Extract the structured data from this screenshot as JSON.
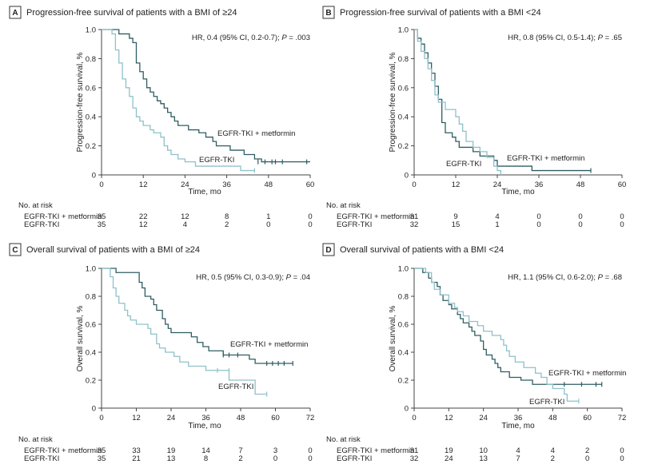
{
  "colors": {
    "dark": "#2f5d62",
    "light": "#8fc1c8",
    "axis": "#444444",
    "text": "#222222"
  },
  "chart_data": [
    {
      "type": "line",
      "letter": "A",
      "title": "Progression-free survival of patients with a BMI of ≥24",
      "xlabel": "Time, mo",
      "ylabel": "Progression-free survival, %",
      "xlim": [
        0,
        60
      ],
      "ylim": [
        0,
        1.0
      ],
      "xticks": [
        "0",
        "12",
        "24",
        "36",
        "48",
        "60"
      ],
      "yticks": [
        "0",
        "0.2",
        "0.4",
        "0.6",
        "0.8",
        "1.0"
      ],
      "hr": {
        "prefix": "HR, 0.4 (95% CI, 0.2-0.7); ",
        "p_label": "P",
        "p_value": " = .003"
      },
      "series": [
        {
          "name": "EGFR-TKI + metformin",
          "color_key": "dark",
          "points": [
            [
              0,
              1.0
            ],
            [
              4,
              1.0
            ],
            [
              5,
              0.97
            ],
            [
              8,
              0.94
            ],
            [
              9,
              0.91
            ],
            [
              10,
              0.77
            ],
            [
              11,
              0.71
            ],
            [
              12,
              0.66
            ],
            [
              13,
              0.6
            ],
            [
              14,
              0.57
            ],
            [
              15,
              0.54
            ],
            [
              16,
              0.51
            ],
            [
              17,
              0.49
            ],
            [
              18,
              0.46
            ],
            [
              19,
              0.43
            ],
            [
              20,
              0.4
            ],
            [
              21,
              0.37
            ],
            [
              22,
              0.34
            ],
            [
              25,
              0.31
            ],
            [
              28,
              0.29
            ],
            [
              30,
              0.26
            ],
            [
              32,
              0.23
            ],
            [
              33,
              0.2
            ],
            [
              37,
              0.17
            ],
            [
              41,
              0.14
            ],
            [
              44,
              0.11
            ],
            [
              46,
              0.09
            ],
            [
              60,
              0.09
            ]
          ],
          "censored": [
            [
              45,
              0.09
            ],
            [
              47,
              0.09
            ],
            [
              49,
              0.09
            ],
            [
              50,
              0.09
            ],
            [
              52,
              0.09
            ],
            [
              59,
              0.09
            ]
          ]
        },
        {
          "name": "EGFR-TKI",
          "color_key": "light",
          "points": [
            [
              0,
              1.0
            ],
            [
              3,
              0.97
            ],
            [
              4,
              0.86
            ],
            [
              5,
              0.77
            ],
            [
              6,
              0.66
            ],
            [
              7,
              0.6
            ],
            [
              8,
              0.54
            ],
            [
              9,
              0.46
            ],
            [
              10,
              0.4
            ],
            [
              11,
              0.37
            ],
            [
              12,
              0.34
            ],
            [
              14,
              0.31
            ],
            [
              15,
              0.29
            ],
            [
              17,
              0.26
            ],
            [
              18,
              0.2
            ],
            [
              19,
              0.17
            ],
            [
              20,
              0.14
            ],
            [
              22,
              0.11
            ],
            [
              24,
              0.09
            ],
            [
              27,
              0.06
            ],
            [
              40,
              0.03
            ],
            [
              44,
              0.03
            ]
          ],
          "censored": [
            [
              44,
              0.03
            ]
          ]
        }
      ],
      "labels": [
        "EGFR-TKI + metformin",
        "EGFR-TKI"
      ],
      "risk_rows": [
        {
          "label": "EGFR-TKI + metformin",
          "values": [
            "35",
            "22",
            "12",
            "8",
            "1",
            "0"
          ]
        },
        {
          "label": "EGFR-TKI",
          "values": [
            "35",
            "12",
            "4",
            "2",
            "0",
            "0"
          ]
        }
      ]
    },
    {
      "type": "line",
      "letter": "B",
      "title": "Progression-free survival of patients with a BMI <24",
      "xlabel": "Time, mo",
      "ylabel": "Progression-free survival, %",
      "xlim": [
        0,
        60
      ],
      "ylim": [
        0,
        1.0
      ],
      "xticks": [
        "0",
        "12",
        "24",
        "36",
        "48",
        "60"
      ],
      "yticks": [
        "0",
        "0.2",
        "0.4",
        "0.6",
        "0.8",
        "1.0"
      ],
      "hr": {
        "prefix": "HR, 0.8 (95% CI, 0.5-1.4); ",
        "p_label": "P",
        "p_value": " = .65"
      },
      "series": [
        {
          "name": "EGFR-TKI + metformin",
          "color_key": "dark",
          "points": [
            [
              0,
              1.0
            ],
            [
              1,
              0.94
            ],
            [
              2,
              0.9
            ],
            [
              3,
              0.84
            ],
            [
              4,
              0.77
            ],
            [
              5,
              0.7
            ],
            [
              6,
              0.61
            ],
            [
              7,
              0.52
            ],
            [
              8,
              0.36
            ],
            [
              9,
              0.29
            ],
            [
              11,
              0.26
            ],
            [
              12,
              0.23
            ],
            [
              13,
              0.19
            ],
            [
              17,
              0.16
            ],
            [
              19,
              0.13
            ],
            [
              23,
              0.1
            ],
            [
              24,
              0.06
            ],
            [
              34,
              0.03
            ],
            [
              51,
              0.03
            ]
          ],
          "censored": [
            [
              51,
              0.03
            ]
          ]
        },
        {
          "name": "EGFR-TKI",
          "color_key": "light",
          "points": [
            [
              0,
              1.0
            ],
            [
              1,
              0.92
            ],
            [
              2,
              0.85
            ],
            [
              3,
              0.8
            ],
            [
              4,
              0.73
            ],
            [
              5,
              0.65
            ],
            [
              6,
              0.55
            ],
            [
              7,
              0.5
            ],
            [
              9,
              0.45
            ],
            [
              12,
              0.4
            ],
            [
              13,
              0.35
            ],
            [
              14,
              0.3
            ],
            [
              15,
              0.23
            ],
            [
              17,
              0.19
            ],
            [
              19,
              0.16
            ],
            [
              21,
              0.12
            ],
            [
              23,
              0.06
            ],
            [
              24,
              0.03
            ],
            [
              25,
              0.0
            ]
          ],
          "censored": []
        }
      ],
      "labels": [
        "EGFR-TKI + metformin",
        "EGFR-TKI"
      ],
      "risk_rows": [
        {
          "label": "EGFR-TKI + metformin",
          "values": [
            "31",
            "9",
            "4",
            "0",
            "0",
            "0"
          ]
        },
        {
          "label": "EGFR-TKI",
          "values": [
            "32",
            "15",
            "1",
            "0",
            "0",
            "0"
          ]
        }
      ]
    },
    {
      "type": "line",
      "letter": "C",
      "title": "Overall survival of patients with a BMI of ≥24",
      "xlabel": "Time, mo",
      "ylabel": "Overall survival, %",
      "xlim": [
        0,
        72
      ],
      "ylim": [
        0,
        1.0
      ],
      "xticks": [
        "0",
        "12",
        "24",
        "36",
        "48",
        "60",
        "72"
      ],
      "yticks": [
        "0",
        "0.2",
        "0.4",
        "0.6",
        "0.8",
        "1.0"
      ],
      "hr": {
        "prefix": "HR, 0.5 (95% CI, 0.3-0.9); ",
        "p_label": "P",
        "p_value": " = .04"
      },
      "series": [
        {
          "name": "EGFR-TKI + metformin",
          "color_key": "dark",
          "points": [
            [
              0,
              1.0
            ],
            [
              5,
              0.97
            ],
            [
              12,
              0.97
            ],
            [
              13,
              0.9
            ],
            [
              14,
              0.86
            ],
            [
              15,
              0.8
            ],
            [
              17,
              0.78
            ],
            [
              18,
              0.74
            ],
            [
              19,
              0.7
            ],
            [
              21,
              0.64
            ],
            [
              22,
              0.6
            ],
            [
              23,
              0.57
            ],
            [
              24,
              0.54
            ],
            [
              31,
              0.51
            ],
            [
              33,
              0.47
            ],
            [
              35,
              0.44
            ],
            [
              37,
              0.41
            ],
            [
              42,
              0.38
            ],
            [
              51,
              0.35
            ],
            [
              53,
              0.32
            ],
            [
              66,
              0.32
            ]
          ],
          "censored": [
            [
              42,
              0.38
            ],
            [
              44,
              0.38
            ],
            [
              47,
              0.38
            ],
            [
              57,
              0.32
            ],
            [
              59,
              0.32
            ],
            [
              61,
              0.32
            ],
            [
              63,
              0.32
            ],
            [
              66,
              0.32
            ]
          ]
        },
        {
          "name": "EGFR-TKI",
          "color_key": "light",
          "points": [
            [
              0,
              1.0
            ],
            [
              3,
              0.94
            ],
            [
              4,
              0.86
            ],
            [
              5,
              0.8
            ],
            [
              6,
              0.75
            ],
            [
              8,
              0.7
            ],
            [
              9,
              0.66
            ],
            [
              10,
              0.63
            ],
            [
              12,
              0.6
            ],
            [
              16,
              0.57
            ],
            [
              17,
              0.53
            ],
            [
              19,
              0.46
            ],
            [
              20,
              0.43
            ],
            [
              22,
              0.4
            ],
            [
              25,
              0.37
            ],
            [
              27,
              0.33
            ],
            [
              30,
              0.3
            ],
            [
              36,
              0.27
            ],
            [
              44,
              0.2
            ],
            [
              53,
              0.1
            ],
            [
              57,
              0.1
            ]
          ],
          "censored": [
            [
              40,
              0.27
            ],
            [
              44,
              0.27
            ],
            [
              57,
              0.1
            ]
          ]
        }
      ],
      "labels": [
        "EGFR-TKI + metformin",
        "EGFR-TKI"
      ],
      "risk_rows": [
        {
          "label": "EGFR-TKI + metformin",
          "values": [
            "35",
            "33",
            "19",
            "14",
            "7",
            "3",
            "0"
          ]
        },
        {
          "label": "EGFR-TKI",
          "values": [
            "35",
            "21",
            "13",
            "8",
            "2",
            "0",
            "0"
          ]
        }
      ]
    },
    {
      "type": "line",
      "letter": "D",
      "title": "Overall survival of patients with a BMI <24",
      "xlabel": "Time, mo",
      "ylabel": "Overall survival, %",
      "xlim": [
        0,
        72
      ],
      "ylim": [
        0,
        1.0
      ],
      "xticks": [
        "0",
        "12",
        "24",
        "36",
        "48",
        "60",
        "72"
      ],
      "yticks": [
        "0",
        "0.2",
        "0.4",
        "0.6",
        "0.8",
        "1.0"
      ],
      "hr": {
        "prefix": "HR, 1.1 (95% CI, 0.6-2.0); ",
        "p_label": "P",
        "p_value": " = .68"
      },
      "series": [
        {
          "name": "EGFR-TKI + metformin",
          "color_key": "dark",
          "points": [
            [
              0,
              1.0
            ],
            [
              3,
              0.97
            ],
            [
              5,
              0.93
            ],
            [
              6,
              0.9
            ],
            [
              8,
              0.87
            ],
            [
              9,
              0.81
            ],
            [
              10,
              0.77
            ],
            [
              12,
              0.74
            ],
            [
              13,
              0.71
            ],
            [
              15,
              0.67
            ],
            [
              16,
              0.64
            ],
            [
              17,
              0.61
            ],
            [
              19,
              0.58
            ],
            [
              20,
              0.55
            ],
            [
              21,
              0.52
            ],
            [
              23,
              0.48
            ],
            [
              24,
              0.42
            ],
            [
              25,
              0.38
            ],
            [
              27,
              0.35
            ],
            [
              28,
              0.32
            ],
            [
              29,
              0.29
            ],
            [
              30,
              0.26
            ],
            [
              33,
              0.22
            ],
            [
              37,
              0.2
            ],
            [
              41,
              0.17
            ],
            [
              65,
              0.17
            ]
          ],
          "censored": [
            [
              52,
              0.17
            ],
            [
              58,
              0.17
            ],
            [
              63,
              0.17
            ],
            [
              65,
              0.17
            ]
          ]
        },
        {
          "name": "EGFR-TKI",
          "color_key": "light",
          "points": [
            [
              0,
              1.0
            ],
            [
              4,
              0.97
            ],
            [
              6,
              0.9
            ],
            [
              7,
              0.85
            ],
            [
              9,
              0.81
            ],
            [
              12,
              0.75
            ],
            [
              14,
              0.72
            ],
            [
              15,
              0.69
            ],
            [
              17,
              0.66
            ],
            [
              19,
              0.62
            ],
            [
              22,
              0.59
            ],
            [
              24,
              0.55
            ],
            [
              27,
              0.52
            ],
            [
              30,
              0.49
            ],
            [
              31,
              0.45
            ],
            [
              32,
              0.41
            ],
            [
              33,
              0.37
            ],
            [
              35,
              0.33
            ],
            [
              38,
              0.29
            ],
            [
              42,
              0.25
            ],
            [
              44,
              0.22
            ],
            [
              46,
              0.17
            ],
            [
              48,
              0.14
            ],
            [
              52,
              0.1
            ],
            [
              53,
              0.05
            ],
            [
              57,
              0.05
            ]
          ],
          "censored": [
            [
              57,
              0.05
            ]
          ]
        }
      ],
      "labels": [
        "EGFR-TKI + metformin",
        "EGFR-TKI"
      ],
      "risk_rows": [
        {
          "label": "EGFR-TKI + metformin",
          "values": [
            "31",
            "19",
            "10",
            "4",
            "4",
            "2",
            "0"
          ]
        },
        {
          "label": "EGFR-TKI",
          "values": [
            "32",
            "24",
            "13",
            "7",
            "2",
            "0",
            "0"
          ]
        }
      ]
    }
  ],
  "risk_header": "No. at risk"
}
